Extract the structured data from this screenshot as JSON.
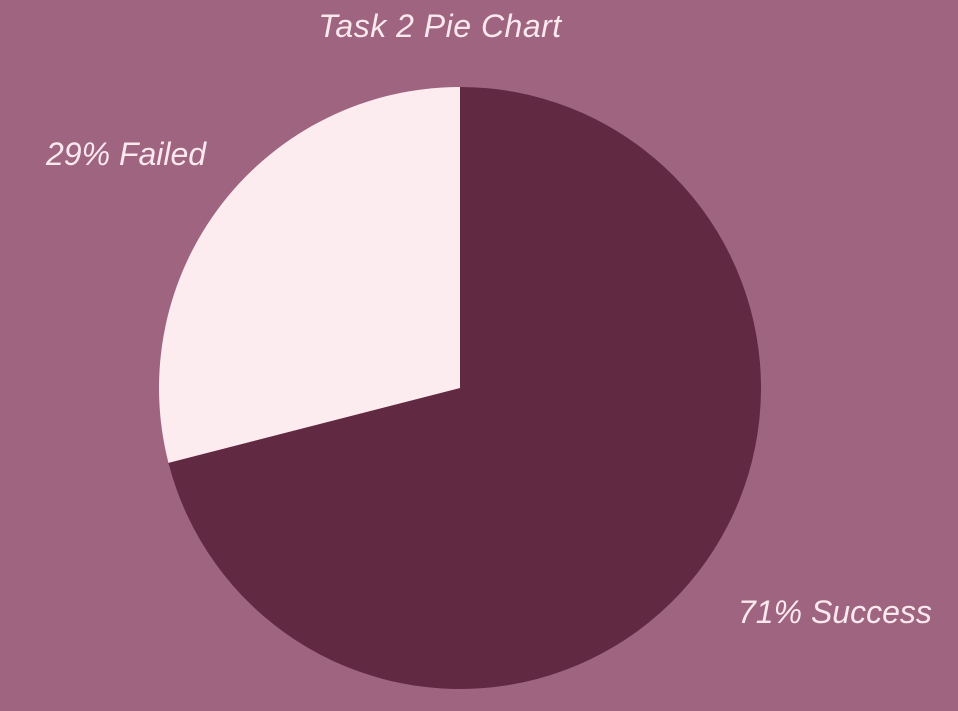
{
  "chart_data": {
    "type": "pie",
    "title": "Task 2 Pie Chart",
    "slices": [
      {
        "name": "Success",
        "value": 71,
        "label": "71% Success",
        "color": "#612942"
      },
      {
        "name": "Failed",
        "value": 29,
        "label": "29% Failed",
        "color": "#fcebef"
      }
    ],
    "start_angle_deg": 0,
    "direction": "clockwise",
    "background_color": "#9e6480"
  }
}
